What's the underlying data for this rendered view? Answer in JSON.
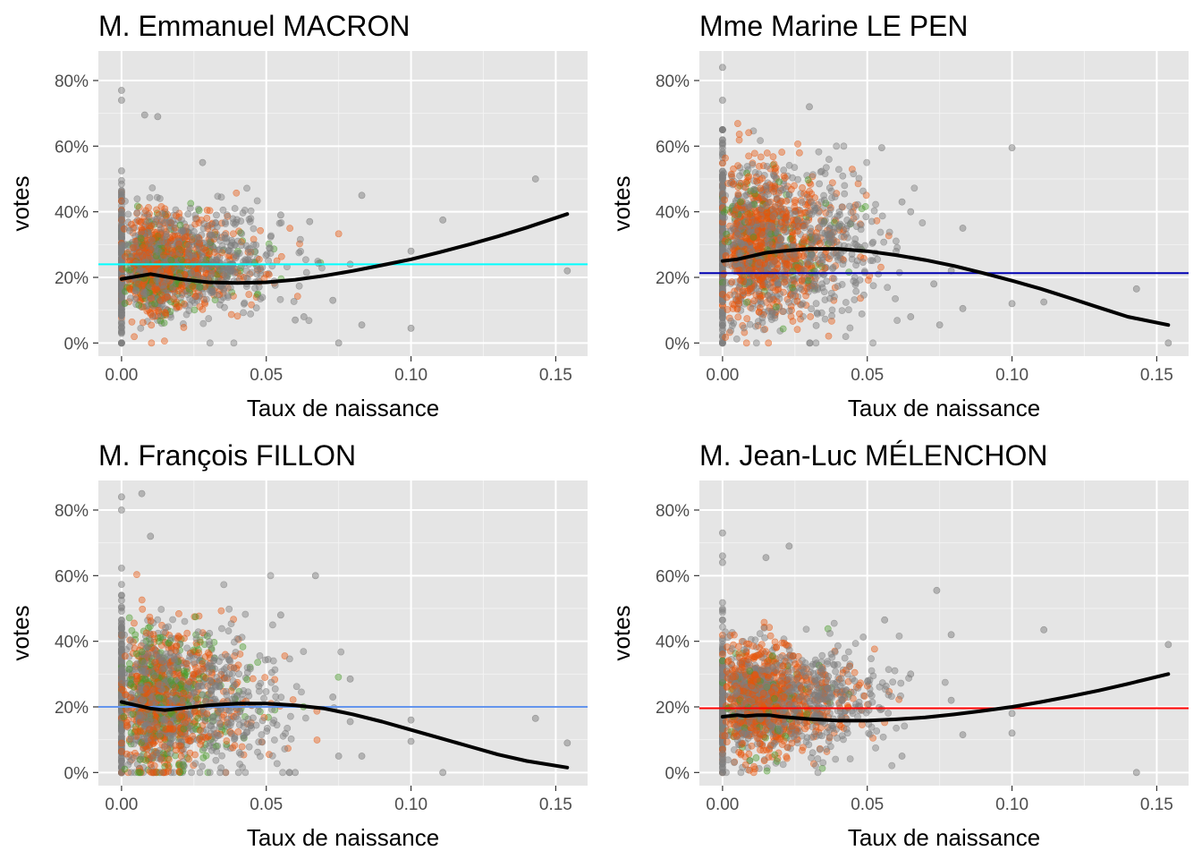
{
  "colors": {
    "panel_background": "#e5e5e5",
    "grid_major": "#ffffff",
    "grid_minor": "#f2f2f2",
    "point_grey": "#7f7f7f",
    "point_orange": "#e6550d",
    "point_green": "#4a9a2a",
    "smooth_line": "#000000",
    "tick_label": "#4d4d4d"
  },
  "chart_data": [
    {
      "type": "scatter",
      "title": "M. Emmanuel MACRON",
      "xlabel": "Taux de naissance",
      "ylabel": "votes",
      "xlim": [
        -0.008,
        0.161
      ],
      "ylim": [
        -0.04,
        0.89
      ],
      "x_ticks": [
        0.0,
        0.05,
        0.1,
        0.15
      ],
      "x_tick_labels": [
        "0.00",
        "0.05",
        "0.10",
        "0.15"
      ],
      "y_ticks": [
        0.0,
        0.2,
        0.4,
        0.6,
        0.8
      ],
      "y_tick_labels": [
        "0%",
        "20%",
        "40%",
        "60%",
        "80%"
      ],
      "grid": true,
      "hline": {
        "value": 0.24,
        "color": "#00ffff"
      },
      "cluster": {
        "center_y": 0.24,
        "spread_y": 0.08,
        "dominant": "orange",
        "green_bias": 0.24
      },
      "smooth_line": {
        "x": [
          0.0,
          0.01,
          0.02,
          0.03,
          0.04,
          0.05,
          0.06,
          0.07,
          0.08,
          0.09,
          0.1,
          0.11,
          0.12,
          0.13,
          0.14,
          0.154
        ],
        "y": [
          0.195,
          0.21,
          0.195,
          0.185,
          0.183,
          0.185,
          0.193,
          0.205,
          0.22,
          0.237,
          0.255,
          0.277,
          0.3,
          0.325,
          0.352,
          0.393
        ]
      },
      "notable_points": [
        {
          "x": 0.0,
          "y": 0.77
        },
        {
          "x": 0.0,
          "y": 0.74
        },
        {
          "x": 0.008,
          "y": 0.695
        },
        {
          "x": 0.0125,
          "y": 0.69
        },
        {
          "x": 0.028,
          "y": 0.55
        },
        {
          "x": 0.075,
          "y": 0.0
        },
        {
          "x": 0.083,
          "y": 0.45
        },
        {
          "x": 0.083,
          "y": 0.055
        },
        {
          "x": 0.1,
          "y": 0.045
        },
        {
          "x": 0.1,
          "y": 0.28
        },
        {
          "x": 0.111,
          "y": 0.375
        },
        {
          "x": 0.143,
          "y": 0.5
        },
        {
          "x": 0.154,
          "y": 0.22
        },
        {
          "x": 0.079,
          "y": 0.24
        },
        {
          "x": 0.073,
          "y": 0.13
        },
        {
          "x": 0.063,
          "y": 0.08
        },
        {
          "x": 0.06,
          "y": 0.07
        },
        {
          "x": 0.065,
          "y": 0.37
        },
        {
          "x": 0.055,
          "y": 0.39
        }
      ]
    },
    {
      "type": "scatter",
      "title": "Mme Marine LE PEN",
      "xlabel": "Taux de naissance",
      "ylabel": "votes",
      "xlim": [
        -0.008,
        0.161
      ],
      "ylim": [
        -0.04,
        0.89
      ],
      "x_ticks": [
        0.0,
        0.05,
        0.1,
        0.15
      ],
      "x_tick_labels": [
        "0.00",
        "0.05",
        "0.10",
        "0.15"
      ],
      "y_ticks": [
        0.0,
        0.2,
        0.4,
        0.6,
        0.8
      ],
      "y_tick_labels": [
        "0%",
        "20%",
        "40%",
        "60%",
        "80%"
      ],
      "grid": true,
      "hline": {
        "value": 0.213,
        "color": "#0000b3"
      },
      "cluster": {
        "center_y": 0.3,
        "spread_y": 0.12,
        "dominant": "orange",
        "green_bias": 0.1
      },
      "smooth_line": {
        "x": [
          0.0,
          0.005,
          0.01,
          0.015,
          0.02,
          0.03,
          0.04,
          0.05,
          0.06,
          0.07,
          0.08,
          0.09,
          0.1,
          0.11,
          0.12,
          0.13,
          0.14,
          0.154
        ],
        "y": [
          0.25,
          0.255,
          0.265,
          0.275,
          0.28,
          0.287,
          0.287,
          0.28,
          0.268,
          0.253,
          0.235,
          0.213,
          0.19,
          0.165,
          0.137,
          0.108,
          0.08,
          0.055
        ]
      },
      "notable_points": [
        {
          "x": 0.0,
          "y": 0.84
        },
        {
          "x": 0.0,
          "y": 0.74
        },
        {
          "x": 0.03,
          "y": 0.72
        },
        {
          "x": 0.1,
          "y": 0.595
        },
        {
          "x": 0.055,
          "y": 0.595
        },
        {
          "x": 0.083,
          "y": 0.35
        },
        {
          "x": 0.083,
          "y": 0.105
        },
        {
          "x": 0.1,
          "y": 0.12
        },
        {
          "x": 0.111,
          "y": 0.125
        },
        {
          "x": 0.143,
          "y": 0.165
        },
        {
          "x": 0.154,
          "y": 0.0
        },
        {
          "x": 0.075,
          "y": 0.055
        },
        {
          "x": 0.073,
          "y": 0.18
        },
        {
          "x": 0.079,
          "y": 0.22
        },
        {
          "x": 0.065,
          "y": 0.08
        },
        {
          "x": 0.062,
          "y": 0.43
        },
        {
          "x": 0.065,
          "y": 0.4
        }
      ]
    },
    {
      "type": "scatter",
      "title": "M. François FILLON",
      "xlabel": "Taux de naissance",
      "ylabel": "votes",
      "xlim": [
        -0.008,
        0.161
      ],
      "ylim": [
        -0.04,
        0.89
      ],
      "x_ticks": [
        0.0,
        0.05,
        0.1,
        0.15
      ],
      "x_tick_labels": [
        "0.00",
        "0.05",
        "0.10",
        "0.15"
      ],
      "y_ticks": [
        0.0,
        0.2,
        0.4,
        0.6,
        0.8
      ],
      "y_tick_labels": [
        "0%",
        "20%",
        "40%",
        "60%",
        "80%"
      ],
      "grid": true,
      "hline": {
        "value": 0.2,
        "color": "#6495ed"
      },
      "cluster": {
        "center_y": 0.22,
        "spread_y": 0.11,
        "dominant": "orange",
        "green_bias": 0.32
      },
      "smooth_line": {
        "x": [
          0.0,
          0.005,
          0.01,
          0.015,
          0.02,
          0.03,
          0.04,
          0.05,
          0.06,
          0.07,
          0.08,
          0.09,
          0.1,
          0.11,
          0.12,
          0.13,
          0.14,
          0.154
        ],
        "y": [
          0.215,
          0.205,
          0.195,
          0.19,
          0.195,
          0.205,
          0.21,
          0.21,
          0.205,
          0.195,
          0.177,
          0.155,
          0.13,
          0.105,
          0.08,
          0.055,
          0.035,
          0.015
        ]
      },
      "notable_points": [
        {
          "x": 0.0,
          "y": 0.84
        },
        {
          "x": 0.0,
          "y": 0.8
        },
        {
          "x": 0.007,
          "y": 0.85
        },
        {
          "x": 0.01,
          "y": 0.72
        },
        {
          "x": 0.067,
          "y": 0.6
        },
        {
          "x": 0.079,
          "y": 0.285
        },
        {
          "x": 0.079,
          "y": 0.155
        },
        {
          "x": 0.083,
          "y": 0.05
        },
        {
          "x": 0.1,
          "y": 0.16
        },
        {
          "x": 0.1,
          "y": 0.095
        },
        {
          "x": 0.111,
          "y": 0.0
        },
        {
          "x": 0.143,
          "y": 0.165
        },
        {
          "x": 0.154,
          "y": 0.09
        },
        {
          "x": 0.073,
          "y": 0.23
        },
        {
          "x": 0.075,
          "y": 0.05
        },
        {
          "x": 0.06,
          "y": 0.0
        },
        {
          "x": 0.055,
          "y": 0.48
        }
      ]
    },
    {
      "type": "scatter",
      "title": "M. Jean-Luc MÉLENCHON",
      "xlabel": "Taux de naissance",
      "ylabel": "votes",
      "xlim": [
        -0.008,
        0.161
      ],
      "ylim": [
        -0.04,
        0.89
      ],
      "x_ticks": [
        0.0,
        0.05,
        0.1,
        0.15
      ],
      "x_tick_labels": [
        "0.00",
        "0.05",
        "0.10",
        "0.15"
      ],
      "y_ticks": [
        0.0,
        0.2,
        0.4,
        0.6,
        0.8
      ],
      "y_tick_labels": [
        "0%",
        "20%",
        "40%",
        "60%",
        "80%"
      ],
      "grid": true,
      "hline": {
        "value": 0.196,
        "color": "#ff0000"
      },
      "cluster": {
        "center_y": 0.22,
        "spread_y": 0.085,
        "dominant": "orange",
        "green_bias": 0.1
      },
      "smooth_line": {
        "x": [
          0.0,
          0.005,
          0.008,
          0.012,
          0.016,
          0.02,
          0.03,
          0.04,
          0.05,
          0.06,
          0.07,
          0.08,
          0.09,
          0.1,
          0.11,
          0.12,
          0.13,
          0.14,
          0.154
        ],
        "y": [
          0.17,
          0.175,
          0.172,
          0.175,
          0.175,
          0.17,
          0.163,
          0.158,
          0.158,
          0.162,
          0.168,
          0.177,
          0.188,
          0.2,
          0.215,
          0.232,
          0.25,
          0.27,
          0.3
        ]
      },
      "notable_points": [
        {
          "x": 0.0,
          "y": 0.66
        },
        {
          "x": 0.0,
          "y": 0.64
        },
        {
          "x": 0.0,
          "y": 0.73
        },
        {
          "x": 0.015,
          "y": 0.655
        },
        {
          "x": 0.023,
          "y": 0.69
        },
        {
          "x": 0.074,
          "y": 0.555
        },
        {
          "x": 0.079,
          "y": 0.42
        },
        {
          "x": 0.079,
          "y": 0.22
        },
        {
          "x": 0.083,
          "y": 0.115
        },
        {
          "x": 0.1,
          "y": 0.18
        },
        {
          "x": 0.1,
          "y": 0.12
        },
        {
          "x": 0.111,
          "y": 0.435
        },
        {
          "x": 0.143,
          "y": 0.0
        },
        {
          "x": 0.154,
          "y": 0.39
        },
        {
          "x": 0.062,
          "y": 0.05
        },
        {
          "x": 0.056,
          "y": 0.465
        },
        {
          "x": 0.065,
          "y": 0.3
        }
      ]
    }
  ]
}
